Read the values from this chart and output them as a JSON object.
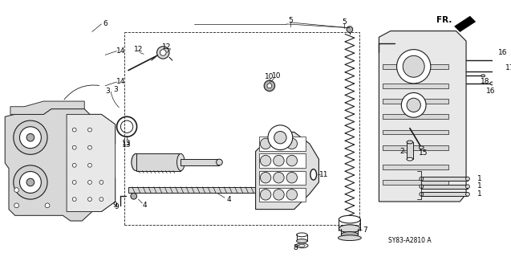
{
  "background_color": "#ffffff",
  "diagram_ref": "SY83-A2810 A",
  "fr_label": "FR.",
  "fig_width": 6.37,
  "fig_height": 3.2,
  "dpi": 100,
  "line_color": "#1a1a1a",
  "gray_fill": "#b0b0b0",
  "light_gray": "#d8d8d8",
  "dark_gray": "#606060"
}
